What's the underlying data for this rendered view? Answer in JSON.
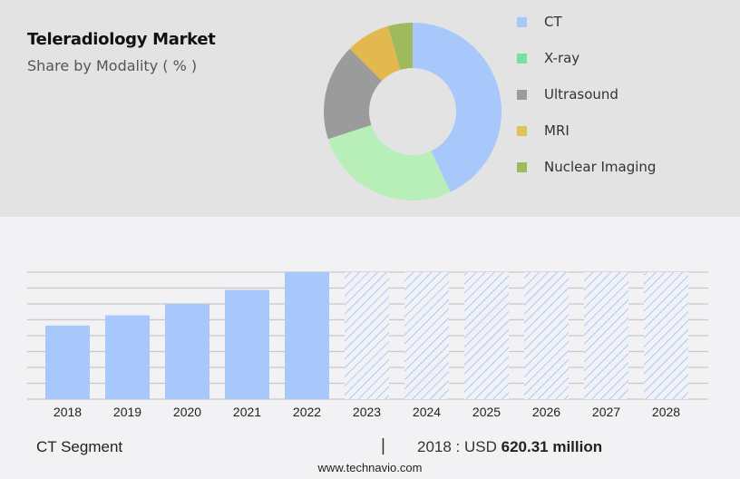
{
  "header": {
    "title": "Teleradiology Market",
    "subtitle": "Share by Modality ( % )"
  },
  "legend": [
    {
      "label": "CT",
      "color": "#a8c8fc"
    },
    {
      "label": "X-ray",
      "color": "#77e29b"
    },
    {
      "label": "Ultrasound",
      "color": "#9b9b9b"
    },
    {
      "label": "MRI",
      "color": "#dfc35a"
    },
    {
      "label": "Nuclear Imaging",
      "color": "#9fba5c"
    }
  ],
  "footer": {
    "segment": "CT Segment",
    "separator": "|",
    "year_prefix": "2018 : USD",
    "value": "620.31 million",
    "site": "www.technavio.com"
  },
  "chart_data": [
    {
      "type": "pie",
      "title": "Teleradiology Market",
      "subtitle": "Share by Modality ( % )",
      "donut": true,
      "categories": [
        "CT",
        "X-ray",
        "Ultrasound",
        "MRI",
        "Nuclear Imaging"
      ],
      "values": [
        43,
        27,
        17.5,
        8,
        4.5
      ],
      "colors": [
        "#a8c8fc",
        "#b8eeb8",
        "#9b9b9b",
        "#e3b84e",
        "#9fba5c"
      ],
      "legend_position": "right"
    },
    {
      "type": "bar",
      "title": "CT Segment",
      "categories": [
        "2018",
        "2019",
        "2020",
        "2021",
        "2022",
        "2023",
        "2024",
        "2025",
        "2026",
        "2027",
        "2028"
      ],
      "values": [
        620.31,
        712,
        818,
        946,
        1113,
        null,
        null,
        null,
        null,
        null,
        null
      ],
      "forecast": [
        false,
        false,
        false,
        false,
        false,
        true,
        true,
        true,
        true,
        true,
        true
      ],
      "relative_heights": [
        0.58,
        0.66,
        0.75,
        0.86,
        1.0,
        1.0,
        1.0,
        1.0,
        1.0,
        1.0,
        1.0
      ],
      "xlabel": "",
      "ylabel": "",
      "grid": true,
      "annotation": "2018 : USD 620.31 million",
      "color": "#a8c8fc"
    }
  ]
}
